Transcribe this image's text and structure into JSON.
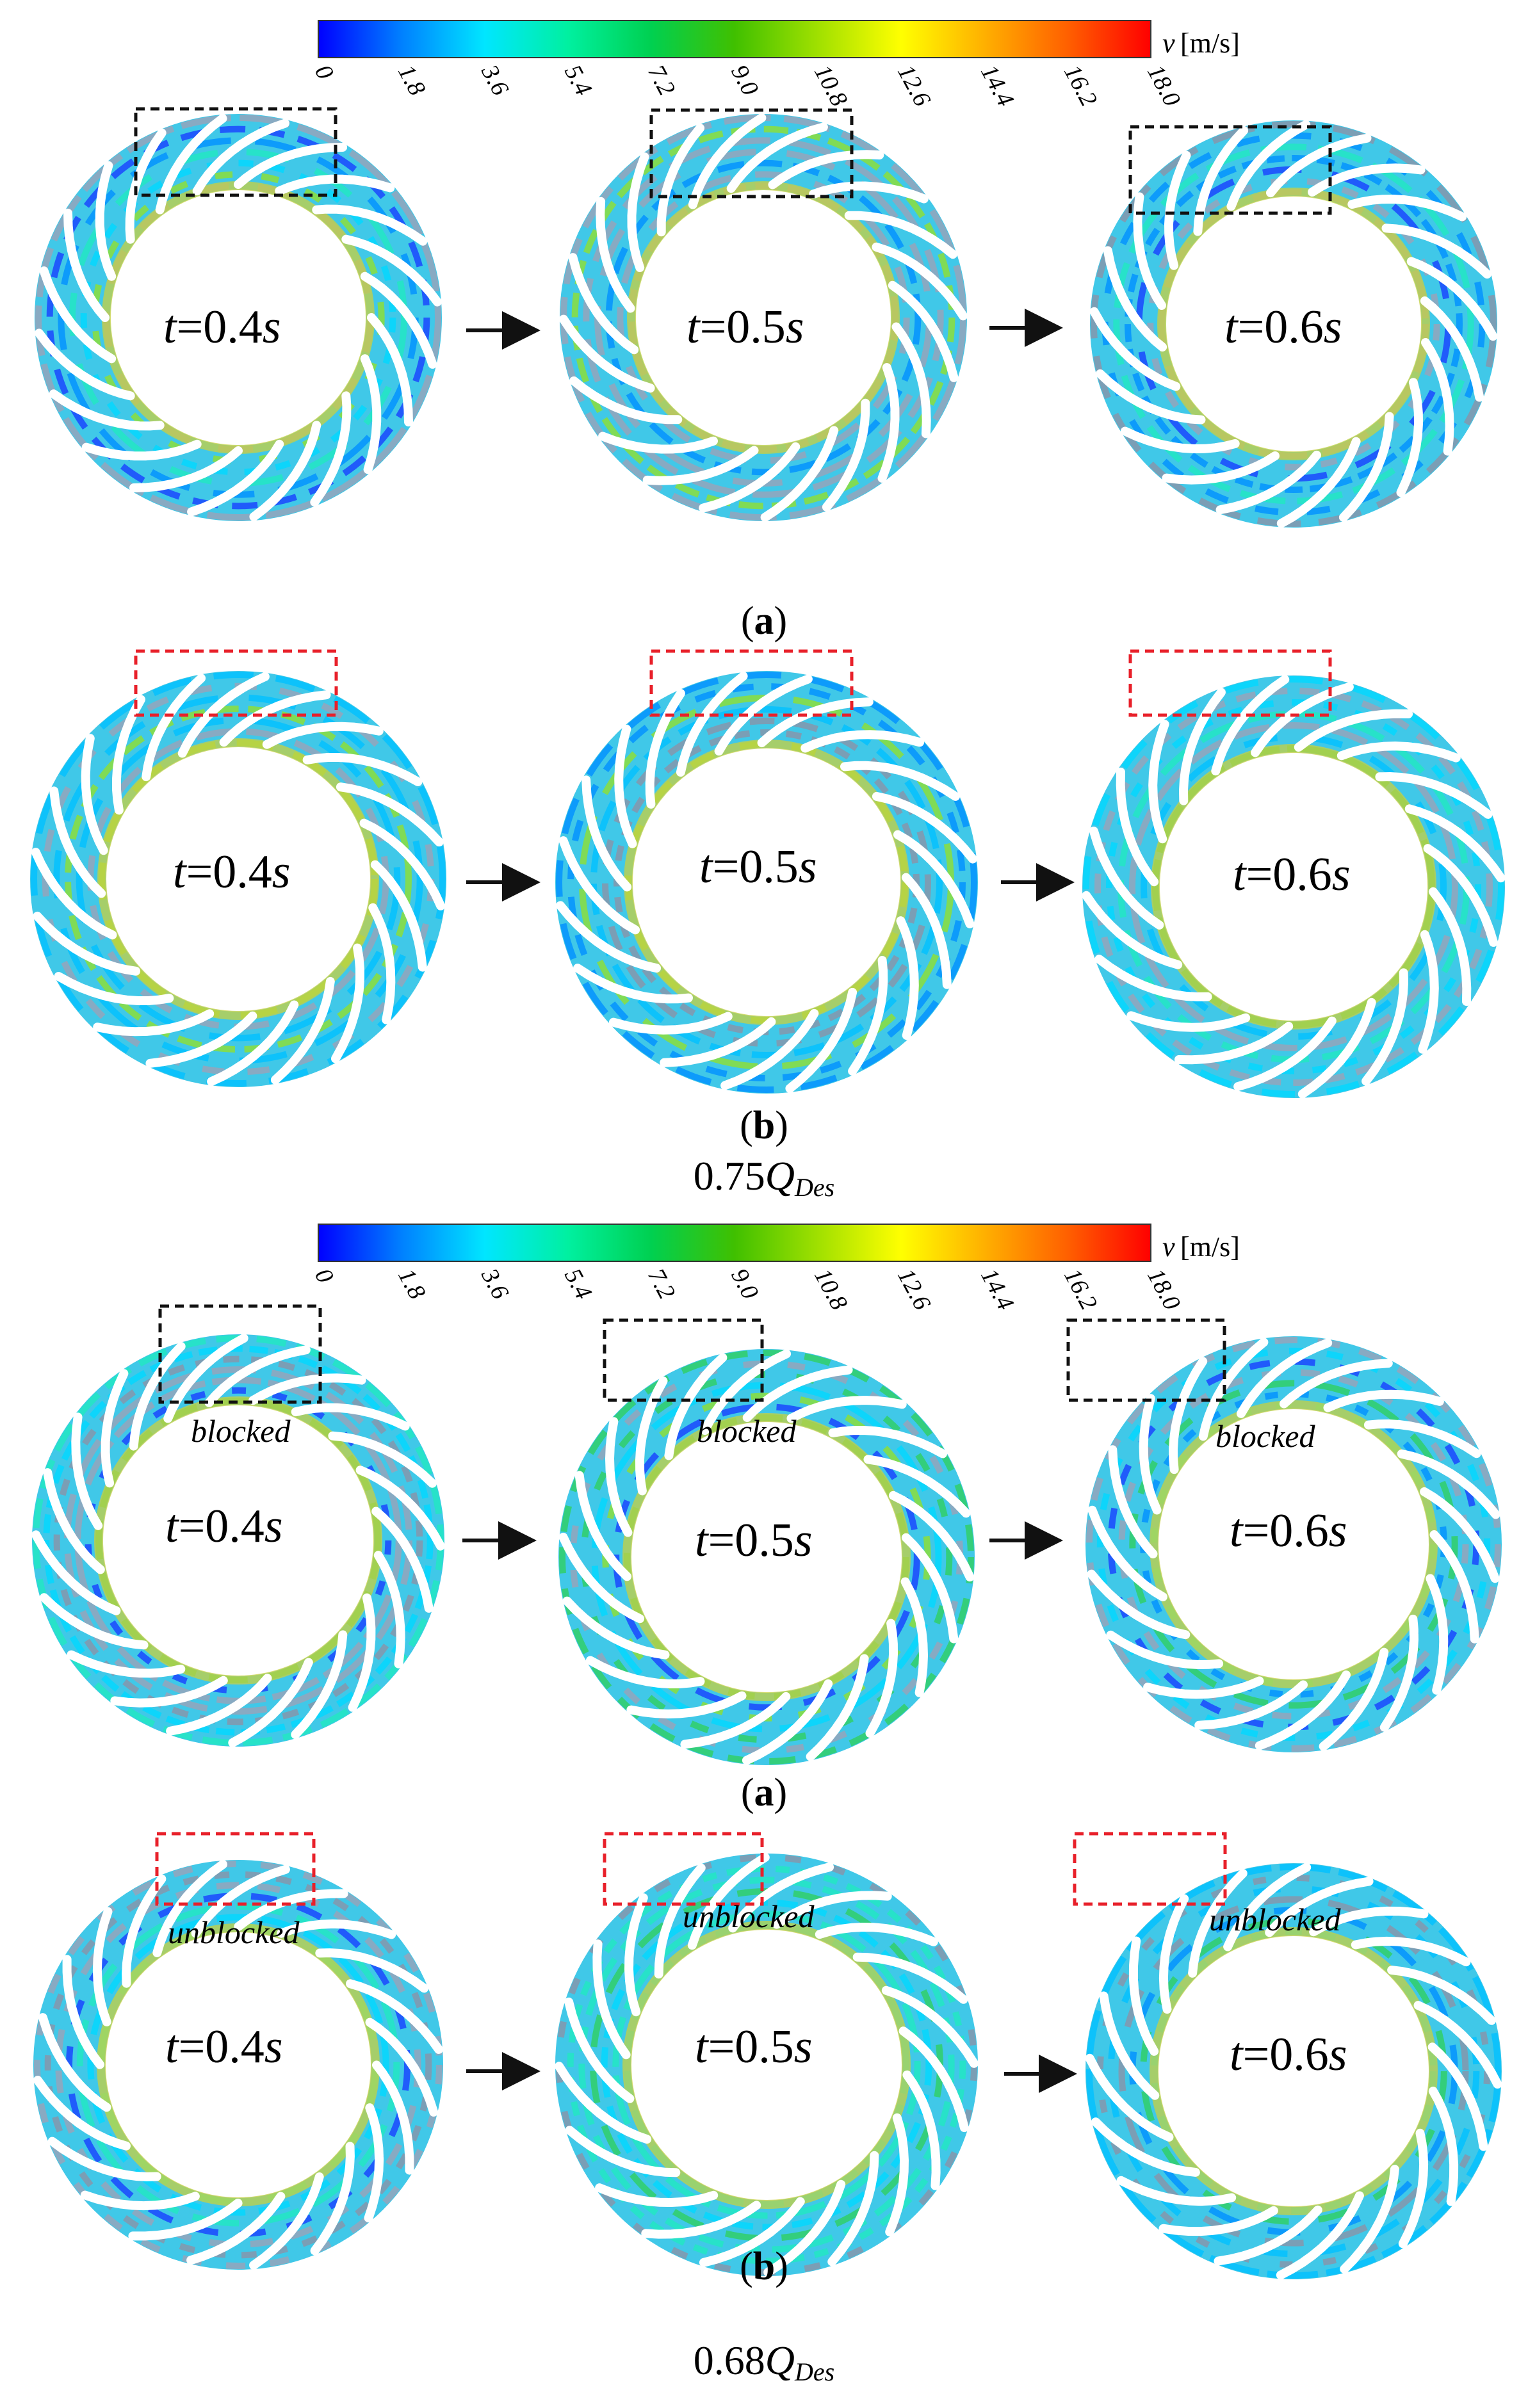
{
  "colorbar": {
    "ticks": [
      "0",
      "1.8",
      "3.6",
      "5.4",
      "7.2",
      "9.0",
      "10.8",
      "12.6",
      "14.4",
      "16.2",
      "18.0"
    ],
    "unit_symbol": "v",
    "unit": "[m/s]",
    "stops": [
      "#0000ff",
      "#0080ff",
      "#00e6ff",
      "#00f0a0",
      "#00d050",
      "#40c000",
      "#a0e000",
      "#ffff00",
      "#ffb000",
      "#ff6000",
      "#ff0000"
    ]
  },
  "panel_labels": {
    "a": "a",
    "b": "b"
  },
  "time_labels": {
    "t_symbol": "t",
    "t1": "=0.4",
    "t2": "=0.5",
    "t3": "=0.6",
    "unit": "s"
  },
  "status_labels": {
    "blocked": "blocked",
    "unblocked": "unblocked"
  },
  "flow_conditions": [
    {
      "value": "0.75",
      "symbol": "Q",
      "subscript": "Des"
    },
    {
      "value": "0.68",
      "symbol": "Q",
      "subscript": "Des"
    }
  ],
  "colors": {
    "black_box": "#111111",
    "red_box": "#e8202a",
    "blade": "#ffffff",
    "streamline_gray": "#9aa3b8"
  }
}
